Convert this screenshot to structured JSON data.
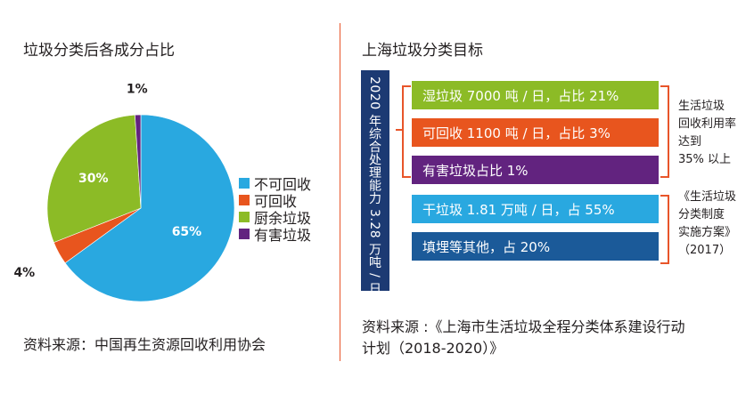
{
  "left_title": "垃圾分类后各成分占比",
  "left_source": "资料来源：中国再生资源回收利用协会",
  "chart_data": {
    "type": "pie",
    "title": "垃圾分类后各成分占比",
    "categories": [
      "不可回收",
      "可回收",
      "厨余垃圾",
      "有害垃圾"
    ],
    "values": [
      65,
      4,
      30,
      1
    ],
    "labels": [
      "65%",
      "4%",
      "30%",
      "1%"
    ],
    "colors": [
      "#29a8e0",
      "#e8551e",
      "#8cbb26",
      "#62237f"
    ],
    "legend": "right"
  },
  "right_title": "上海垃圾分类目标",
  "capacity_label": "2020 年综合处理能力 3.28 万吨 / 日",
  "targets": [
    {
      "text": "湿垃圾 7000 吨 / 日，占比 21%",
      "color": "#8cbb26"
    },
    {
      "text": "可回收 1100 吨 / 日，占比 3%",
      "color": "#e8551e"
    },
    {
      "text": "有害垃圾占比 1%",
      "color": "#62237f"
    },
    {
      "text": "干垃圾 1.81 万吨 / 日，占 55%",
      "color": "#29a8e0"
    },
    {
      "text": "填埋等其他，占 20%",
      "color": "#1b5a99"
    }
  ],
  "note_lines": [
    "生活垃圾",
    "回收利用率",
    "达到",
    "35% 以上"
  ],
  "plan_lines": [
    "《生活垃圾",
    "分类制度",
    "实施方案》",
    "（2017）"
  ],
  "right_source_line1": "资料来源 :《上海市生活垃圾全程分类体系建设行动",
  "right_source_line2": "计划（2018-2020）》",
  "colors": {
    "divider": "#e8552a",
    "bracket": "#e8552a",
    "capacity_bar": "#1c3a73"
  }
}
